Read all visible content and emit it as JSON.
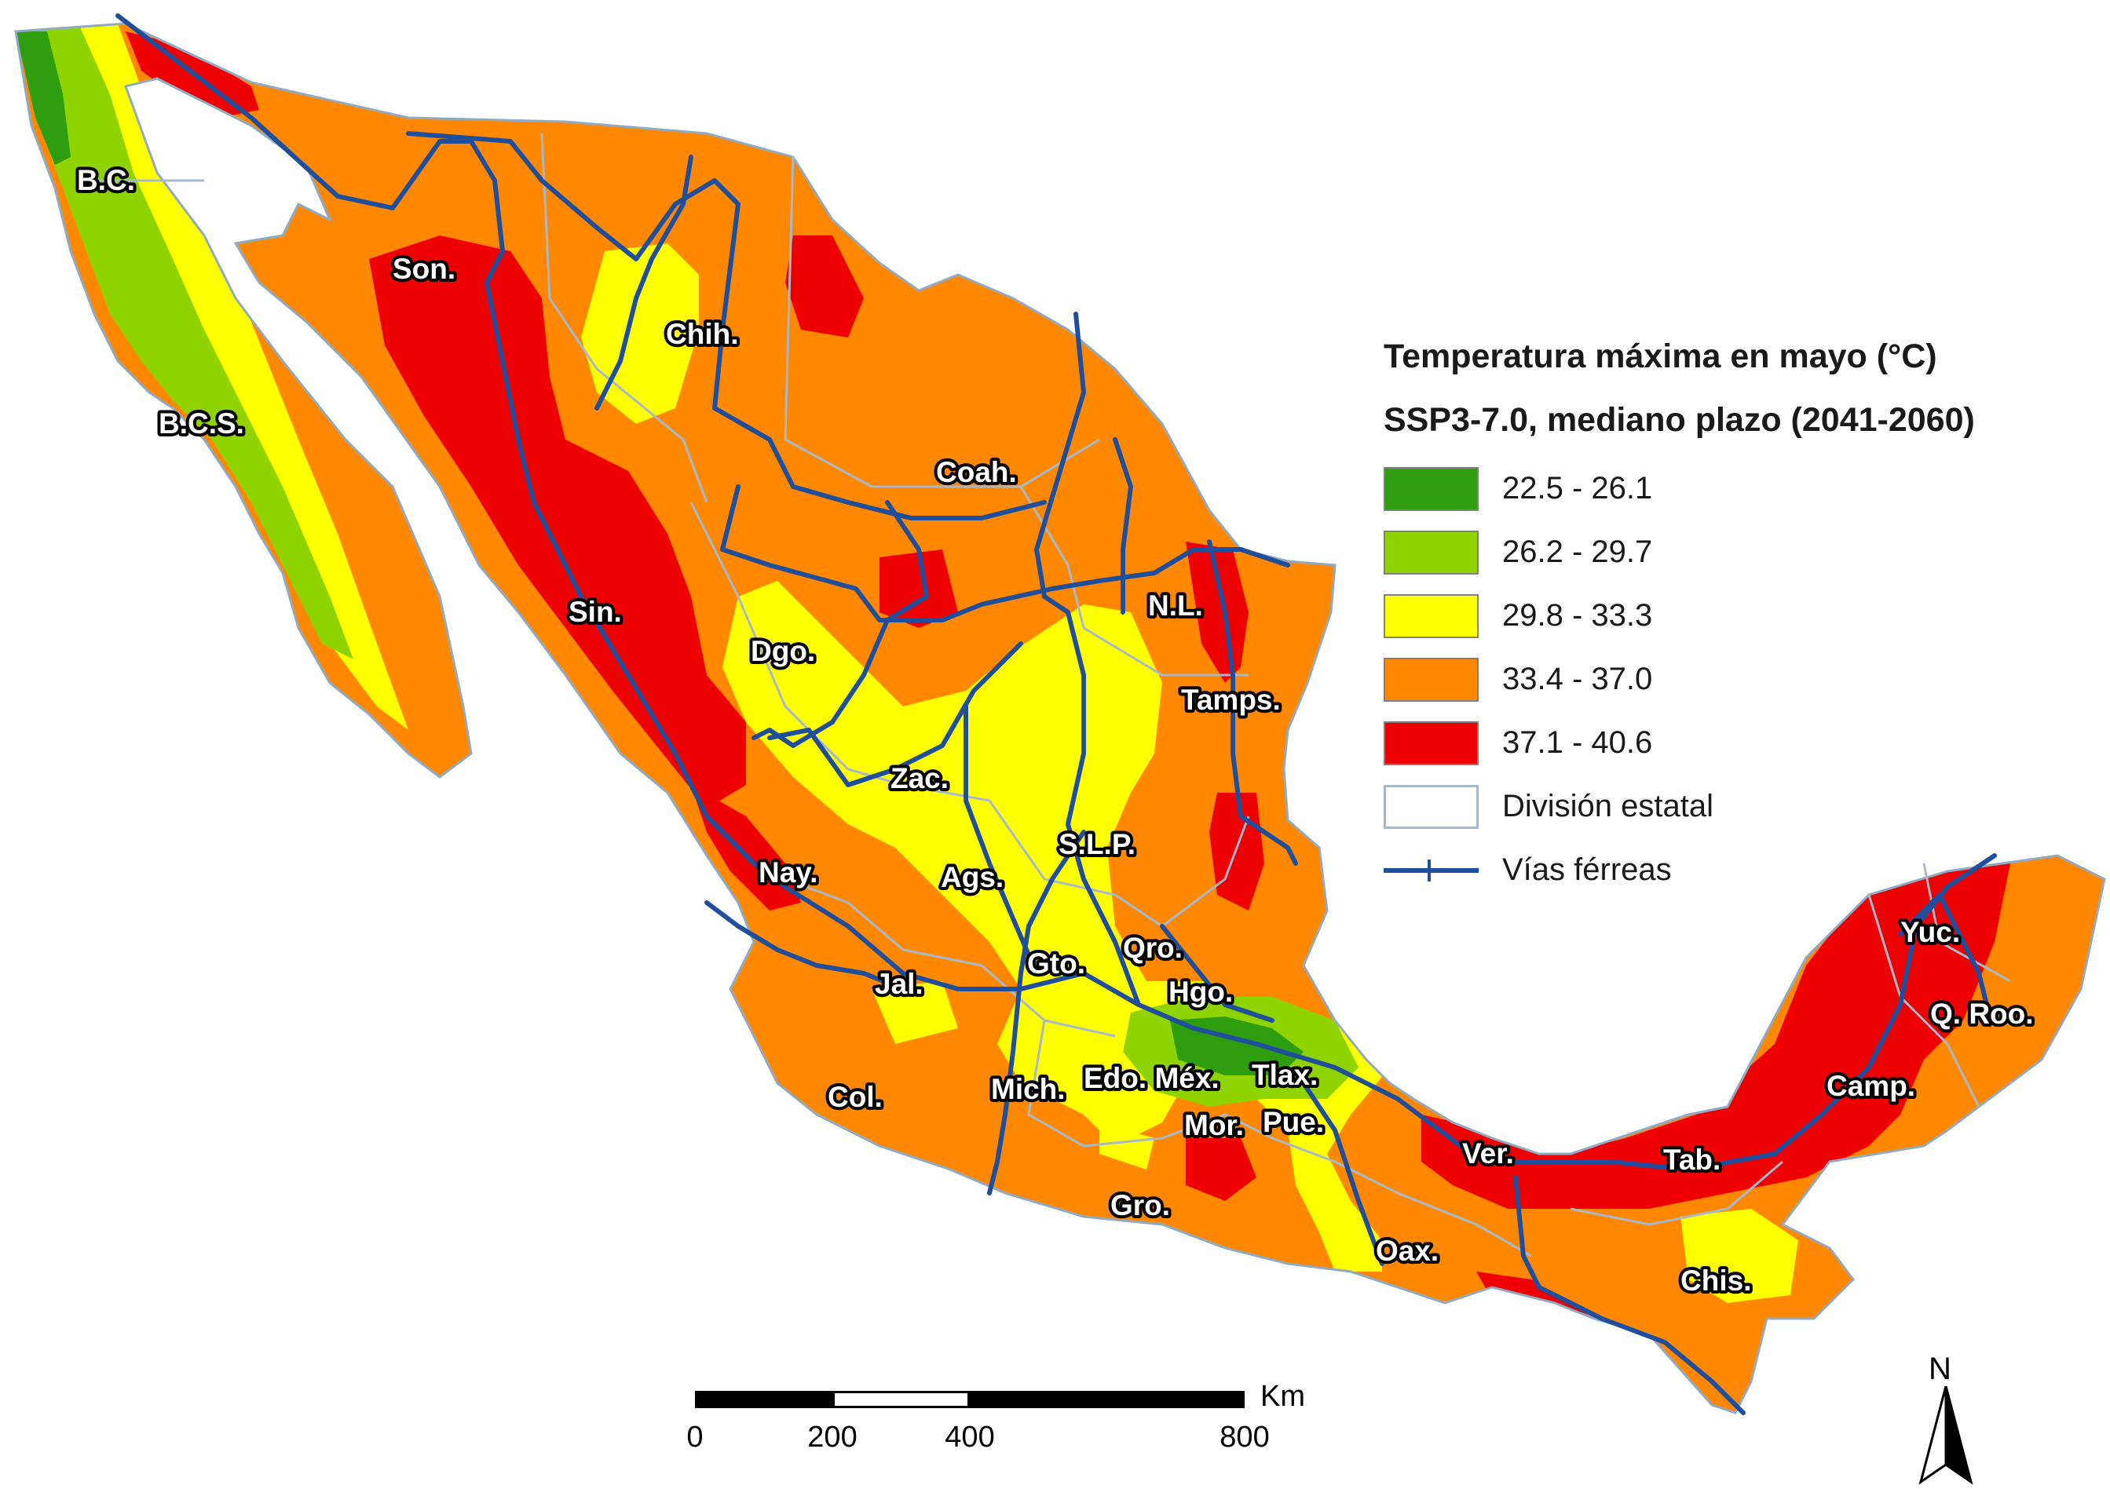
{
  "legend": {
    "title": "Temperatura máxima en mayo (°C)",
    "subtitle": "SSP3-7.0, mediano plazo (2041-2060)",
    "classes": [
      {
        "label": "22.5 - 26.1",
        "color": "#2e9e0f"
      },
      {
        "label": "26.2 - 29.7",
        "color": "#8fd400"
      },
      {
        "label": "29.8 - 33.3",
        "color": "#ffff00"
      },
      {
        "label": "33.4 - 37.0",
        "color": "#ff8800"
      },
      {
        "label": "37.1 - 40.6",
        "color": "#ee0000"
      }
    ],
    "boundary_label": "División estatal",
    "boundary_color": "#a6b8cc",
    "rail_label": "Vías férreas",
    "rail_color": "#1f4e9c"
  },
  "states": [
    "B.C.",
    "Son.",
    "Chih.",
    "B.C.S.",
    "Coah.",
    "Sin.",
    "N.L.",
    "Dgo.",
    "Tamps.",
    "Zac.",
    "S.L.P.",
    "Nay.",
    "Ags.",
    "Qro.",
    "Gto.",
    "Jal.",
    "Hgo.",
    "Yuc.",
    "Q. Roo.",
    "Edo. Méx.",
    "Tlax.",
    "Mich.",
    "Col.",
    "Camp.",
    "Mor.",
    "Pue.",
    "Ver.",
    "Tab.",
    "Gro.",
    "Oax.",
    "Chis."
  ],
  "scale": {
    "unit": "Km",
    "labels": [
      "0",
      "200",
      "400",
      "800"
    ]
  },
  "north": "N"
}
